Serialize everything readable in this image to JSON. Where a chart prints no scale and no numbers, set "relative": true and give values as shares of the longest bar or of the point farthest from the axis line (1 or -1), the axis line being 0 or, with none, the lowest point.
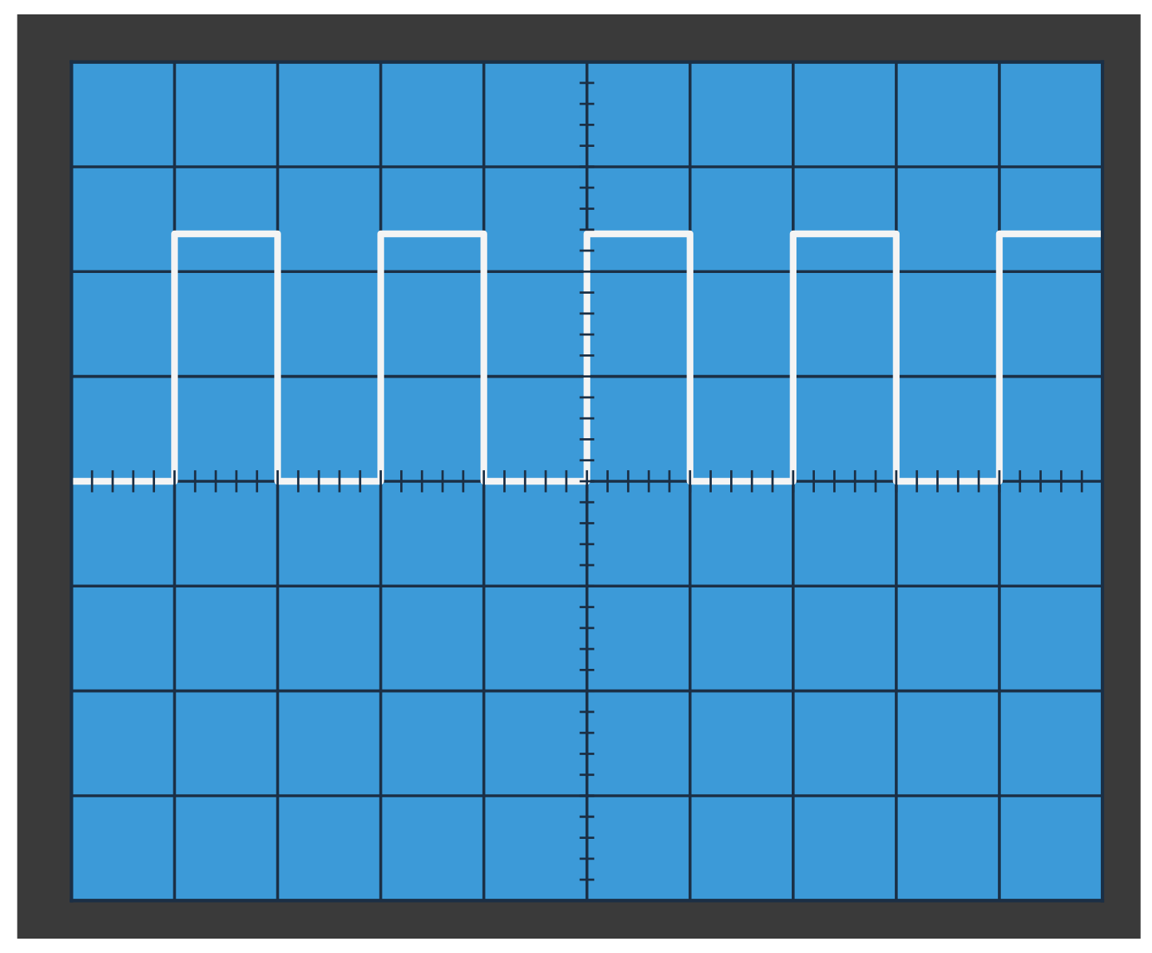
{
  "chart_data": {
    "type": "step",
    "relative": true,
    "grid": true,
    "legend": false,
    "categories": [
      null,
      null,
      null,
      null,
      null,
      null,
      null,
      null,
      null,
      null,
      null
    ],
    "series": [
      {
        "color": "#f4f4f4",
        "values": [
          0,
          1,
          0,
          1,
          0,
          1,
          0,
          1,
          0,
          1,
          1
        ]
      }
    ]
  }
}
